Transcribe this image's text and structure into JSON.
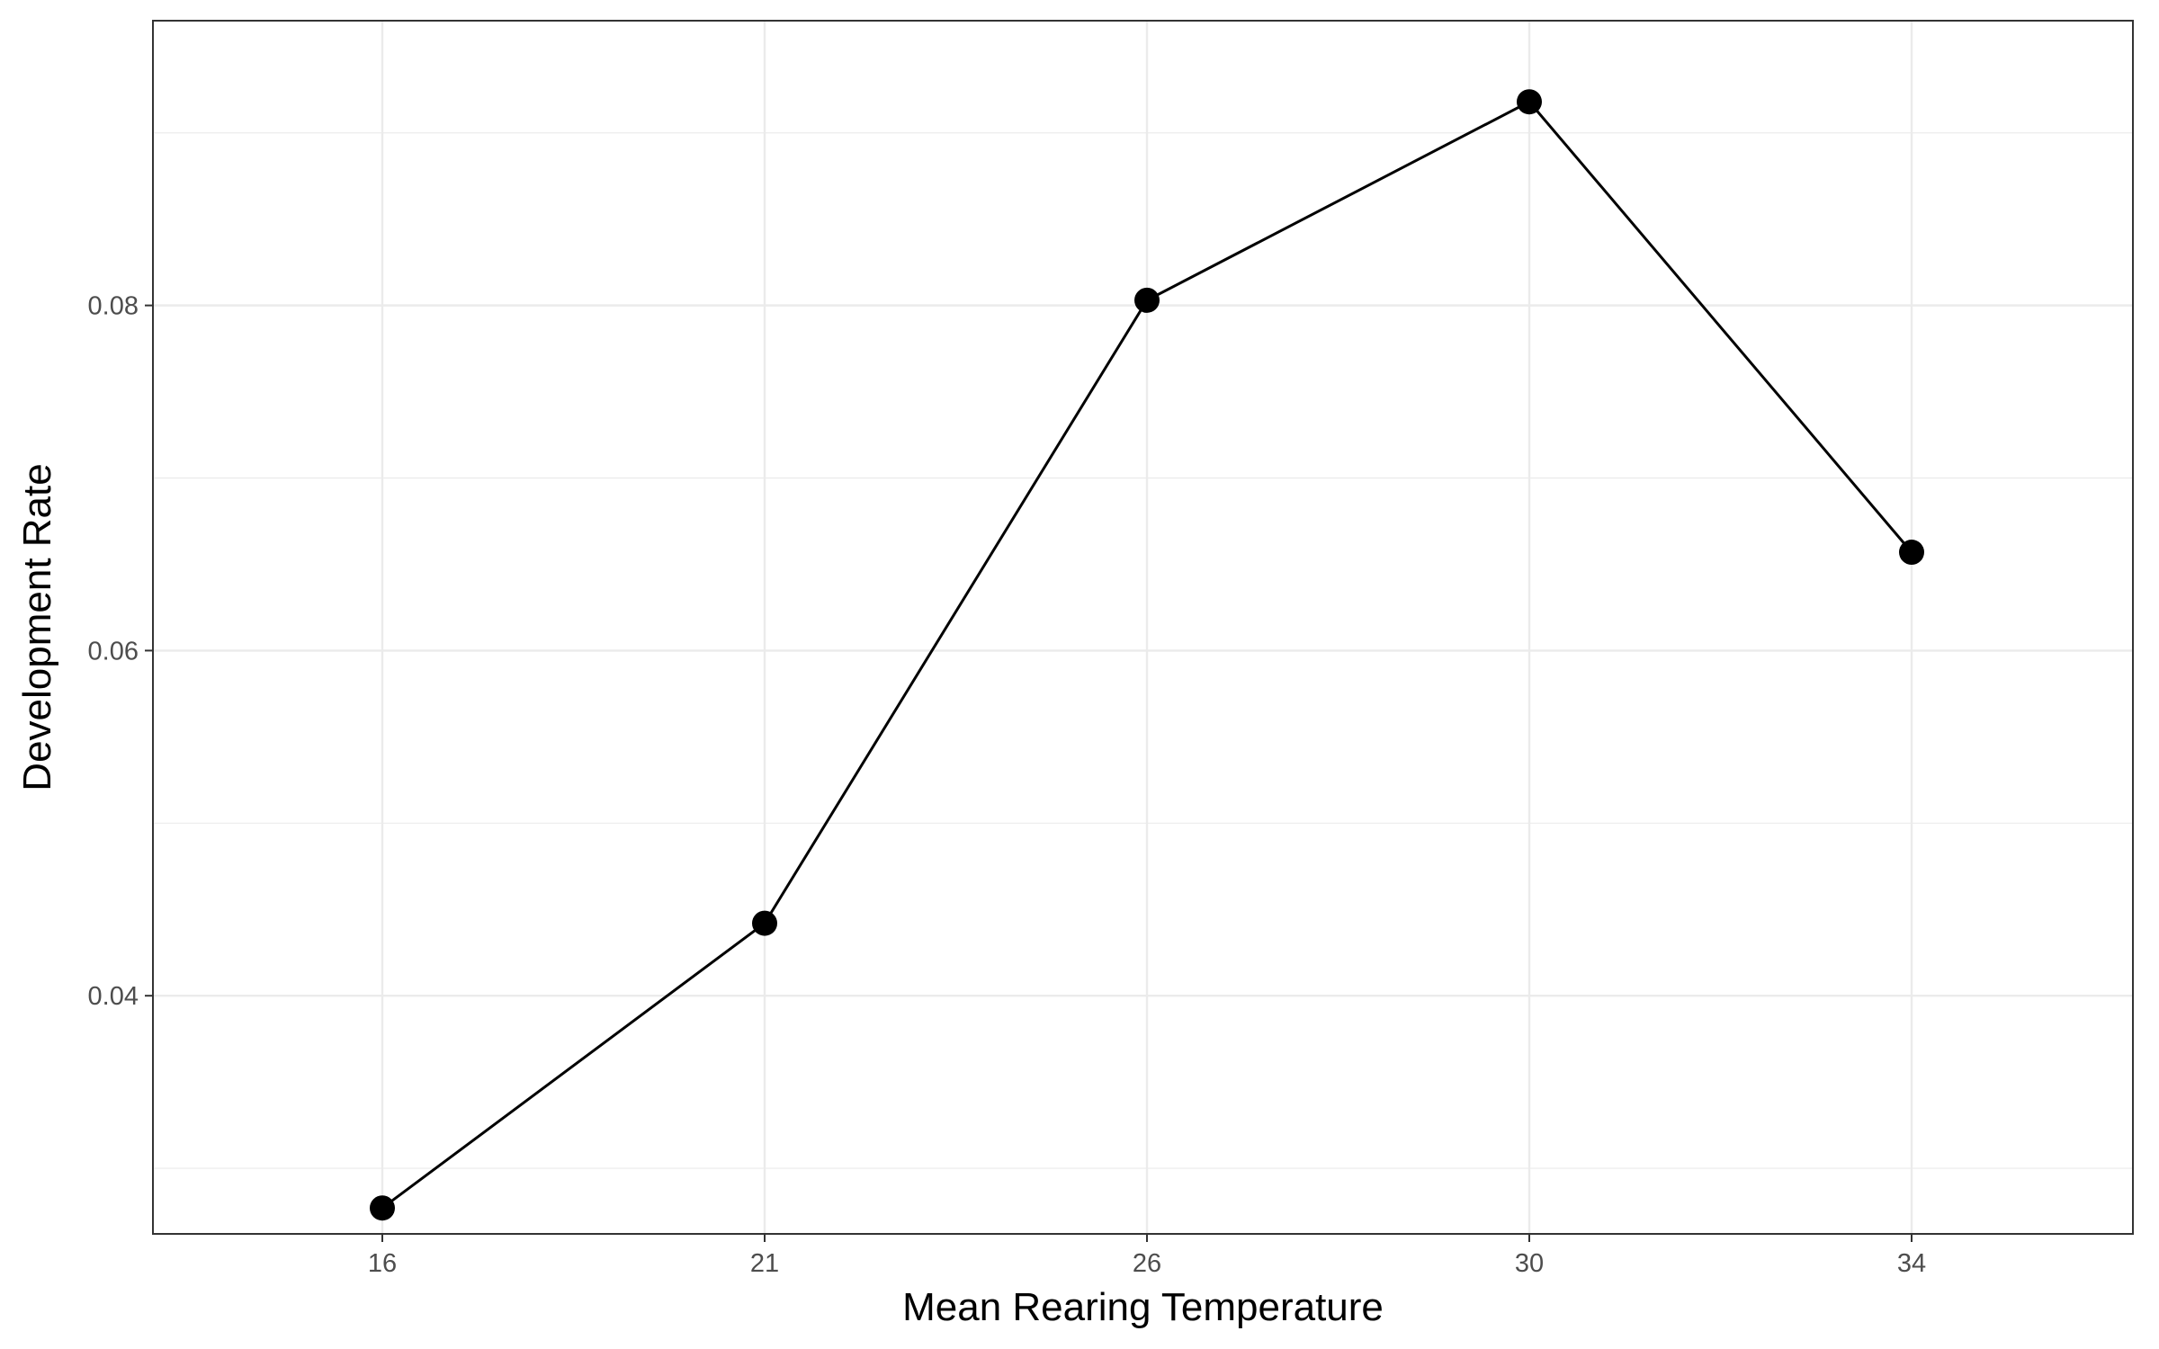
{
  "chart_data": {
    "type": "line",
    "xlabel": "Mean Rearing Temperature",
    "ylabel": "Development Rate",
    "categories": [
      "16",
      "21",
      "26",
      "30",
      "34"
    ],
    "series": [
      {
        "values": [
          0.0277,
          0.0442,
          0.0803,
          0.0918,
          0.0657
        ]
      }
    ],
    "yticks": [
      "0.04",
      "0.06",
      "0.08"
    ],
    "ylim": [
      0.0262,
      0.0965
    ],
    "grid": true,
    "legend": "none",
    "colors": {
      "line": "#000000",
      "point": "#000000",
      "grid": "#ebebeb",
      "panel_border": "#333333"
    }
  }
}
